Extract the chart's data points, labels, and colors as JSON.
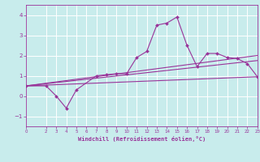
{
  "xlabel": "Windchill (Refroidissement éolien,°C)",
  "xlim": [
    0,
    23
  ],
  "ylim": [
    -1.5,
    4.5
  ],
  "yticks": [
    -1,
    0,
    1,
    2,
    3,
    4
  ],
  "xticks": [
    0,
    2,
    3,
    4,
    5,
    6,
    7,
    8,
    9,
    10,
    11,
    12,
    13,
    14,
    15,
    16,
    17,
    18,
    19,
    20,
    21,
    22,
    23
  ],
  "bg_color": "#c8ecec",
  "line_color": "#993399",
  "grid_color": "#ffffff",
  "series": [
    {
      "x": [
        0,
        2,
        3,
        4,
        5,
        7,
        8,
        9,
        10,
        11,
        12,
        13,
        14,
        15,
        16,
        17,
        18,
        19,
        20,
        21,
        22,
        23
      ],
      "y": [
        0.5,
        0.5,
        0.0,
        -0.6,
        0.3,
        1.0,
        1.05,
        1.1,
        1.1,
        1.9,
        2.2,
        3.5,
        3.6,
        3.9,
        2.5,
        1.45,
        2.1,
        2.1,
        1.9,
        1.85,
        1.6,
        0.95
      ],
      "marker": "D",
      "markersize": 2.0
    },
    {
      "x": [
        0,
        23
      ],
      "y": [
        0.5,
        1.75
      ],
      "marker": null,
      "markersize": 0
    },
    {
      "x": [
        0,
        23
      ],
      "y": [
        0.5,
        2.0
      ],
      "marker": null,
      "markersize": 0
    },
    {
      "x": [
        0,
        23
      ],
      "y": [
        0.5,
        0.95
      ],
      "marker": null,
      "markersize": 0
    }
  ]
}
